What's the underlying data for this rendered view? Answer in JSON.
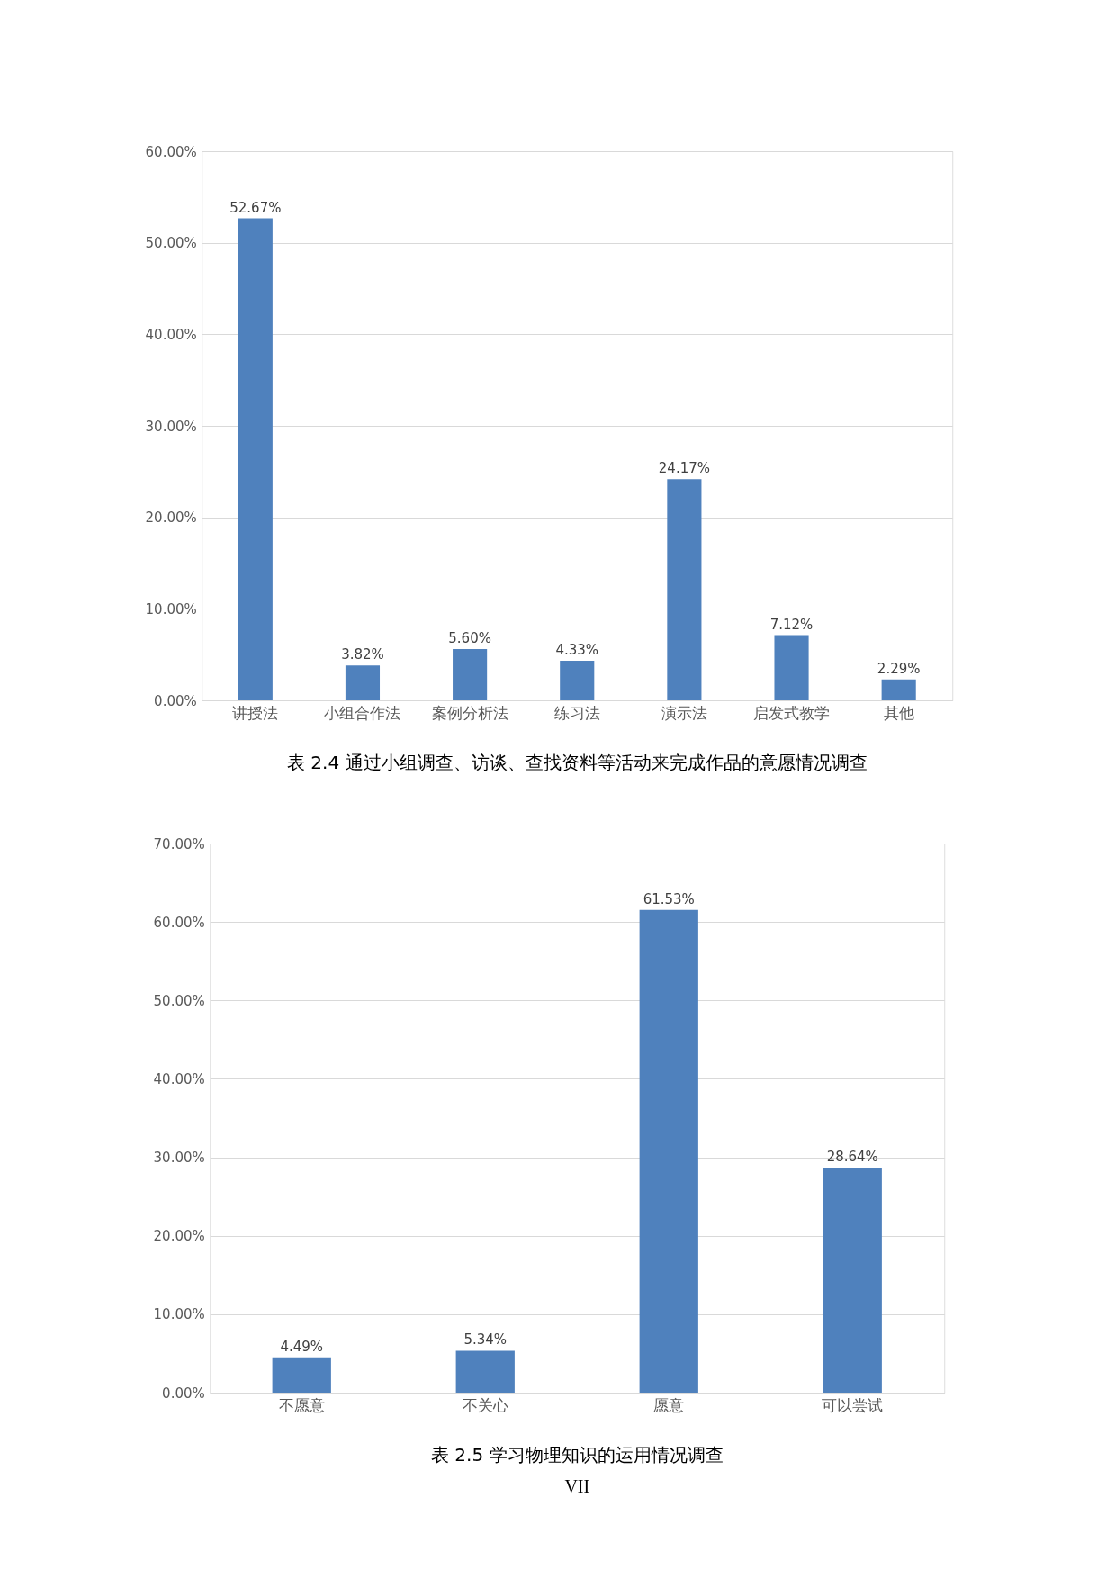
{
  "chart_data": [
    {
      "type": "bar",
      "title": "表 2.4 通过小组调查、访谈、查找资料等活动来完成作品的意愿情况调查",
      "categories": [
        "讲授法",
        "小组合作法",
        "案例分析法",
        "练习法",
        "演示法",
        "启发式教学",
        "其他"
      ],
      "values": [
        52.67,
        3.82,
        5.6,
        4.33,
        24.17,
        7.12,
        2.29
      ],
      "value_labels": [
        "52.67%",
        "3.82%",
        "5.60%",
        "4.33%",
        "24.17%",
        "7.12%",
        "2.29%"
      ],
      "color": "#4f81bd",
      "ylim": [
        0,
        60
      ],
      "yticks": [
        {
          "value": 0,
          "label": "0.00%"
        },
        {
          "value": 10,
          "label": "10.00%"
        },
        {
          "value": 20,
          "label": "20.00%"
        },
        {
          "value": 30,
          "label": "30.00%"
        },
        {
          "value": 40,
          "label": "40.00%"
        },
        {
          "value": 50,
          "label": "50.00%"
        },
        {
          "value": 60,
          "label": "60.00%"
        }
      ],
      "grid": "y"
    },
    {
      "type": "bar",
      "title": "表 2.5 学习物理知识的运用情况调查",
      "categories": [
        "不愿意",
        "不关心",
        "愿意",
        "可以尝试"
      ],
      "values": [
        4.49,
        5.34,
        61.53,
        28.64
      ],
      "value_labels": [
        "4.49%",
        "5.34%",
        "61.53%",
        "28.64%"
      ],
      "color": "#4f81bd",
      "ylim": [
        0,
        70
      ],
      "yticks": [
        {
          "value": 0,
          "label": "0.00%"
        },
        {
          "value": 10,
          "label": "10.00%"
        },
        {
          "value": 20,
          "label": "20.00%"
        },
        {
          "value": 30,
          "label": "30.00%"
        },
        {
          "value": 40,
          "label": "40.00%"
        },
        {
          "value": 50,
          "label": "50.00%"
        },
        {
          "value": 60,
          "label": "60.00%"
        },
        {
          "value": 70,
          "label": "70.00%"
        }
      ],
      "grid": "y",
      "annotations": [
        "VII"
      ]
    }
  ]
}
